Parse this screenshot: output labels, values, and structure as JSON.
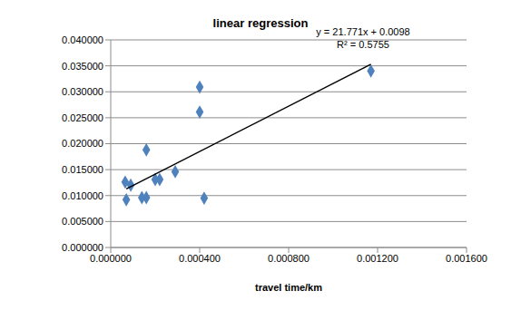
{
  "chart_data": {
    "type": "scatter",
    "title": "linear regression",
    "x_label": "travel time/km",
    "annotations": [
      "y = 21.771x + 0.0098",
      "R² = 0.5755"
    ],
    "xlim": [
      0,
      0.0016
    ],
    "xticks": [
      {
        "value": 0,
        "label": "0.000000"
      },
      {
        "value": 0.0004,
        "label": "0.000400"
      },
      {
        "value": 0.0008,
        "label": "0.000800"
      },
      {
        "value": 0.0012,
        "label": "0.001200"
      },
      {
        "value": 0.0016,
        "label": "0.001600"
      }
    ],
    "ylim": [
      0,
      0.04
    ],
    "yticks": [
      {
        "value": 0,
        "label": "0.000000"
      },
      {
        "value": 0.005,
        "label": "0.005000"
      },
      {
        "value": 0.01,
        "label": "0.010000"
      },
      {
        "value": 0.015,
        "label": "0.015000"
      },
      {
        "value": 0.02,
        "label": "0.020000"
      },
      {
        "value": 0.025,
        "label": "0.025000"
      },
      {
        "value": 0.03,
        "label": "0.030000"
      },
      {
        "value": 0.035,
        "label": "0.035000"
      },
      {
        "value": 0.04,
        "label": "0.040000"
      }
    ],
    "grid": true,
    "series": [
      {
        "type": "scatter",
        "color": "#4f81bd",
        "marker": "diamond",
        "x": [
          6.5e-05,
          7e-05,
          9e-05,
          0.00014,
          0.00016,
          0.00016,
          0.0002,
          0.00022,
          0.00029,
          0.0004,
          0.0004,
          0.00042,
          0.00117
        ],
        "values": [
          0.0126,
          0.0092,
          0.012,
          0.0096,
          0.0096,
          0.0188,
          0.0131,
          0.0131,
          0.0146,
          0.0309,
          0.0261,
          0.0095,
          0.034
        ]
      },
      {
        "type": "line",
        "color": "#000000",
        "line_style": "solid",
        "x": [
          7e-05,
          0.00117
        ],
        "values": [
          0.0113,
          0.0353
        ]
      }
    ]
  }
}
